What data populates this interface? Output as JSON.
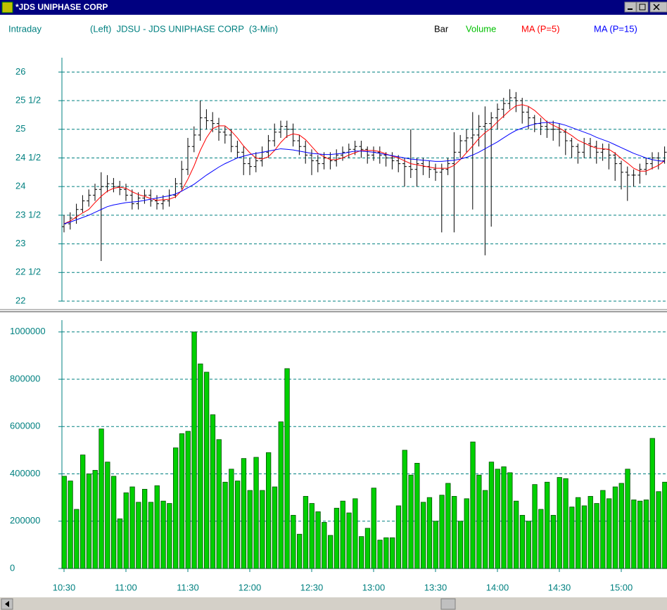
{
  "window": {
    "title": "*JDS UNIPHASE CORP"
  },
  "header": {
    "mode": "Intraday",
    "description": "(Left)  JDSU - JDS UNIPHASE CORP  (3-Min)"
  },
  "chart_data": [
    {
      "type": "ohlc",
      "ylim": [
        22,
        26.25
      ],
      "grid": true,
      "yticks": [
        22,
        {
          "value": 22.5,
          "label": "22 1/2"
        },
        23,
        {
          "value": 23.5,
          "label": "23 1/2"
        },
        24,
        {
          "value": 24.5,
          "label": "24 1/2"
        },
        25,
        {
          "value": 25.5,
          "label": "25 1/2"
        },
        26
      ],
      "series": [
        {
          "name": "Bar",
          "color": "#000000",
          "open": [
            23.3,
            23.35,
            23.45,
            23.6,
            23.75,
            23.85,
            23.95,
            24.0,
            24.05,
            24.0,
            23.95,
            23.85,
            23.7,
            23.8,
            23.85,
            23.75,
            23.7,
            23.75,
            23.85,
            24.05,
            24.3,
            24.7,
            24.9,
            25.2,
            25.15,
            25.1,
            24.95,
            24.9,
            24.7,
            24.6,
            24.4,
            24.35,
            24.45,
            24.6,
            24.8,
            24.95,
            25.05,
            25.0,
            24.8,
            24.7,
            24.55,
            24.45,
            24.4,
            24.5,
            24.45,
            24.55,
            24.6,
            24.65,
            24.7,
            24.65,
            24.55,
            24.6,
            24.55,
            24.5,
            24.45,
            24.4,
            24.35,
            24.3,
            24.4,
            24.35,
            24.3,
            24.25,
            24.3,
            24.4,
            24.6,
            24.8,
            24.85,
            24.9,
            25.05,
            25.1,
            25.2,
            25.35,
            25.45,
            25.55,
            25.5,
            25.3,
            25.2,
            25.1,
            25.05,
            25.0,
            25.0,
            24.95,
            24.8,
            24.7,
            24.6,
            24.75,
            24.7,
            24.6,
            24.65,
            24.55,
            24.4,
            24.25,
            24.2,
            24.2,
            24.3,
            24.4,
            24.5,
            24.45
          ],
          "high": [
            23.5,
            23.55,
            23.7,
            23.85,
            23.95,
            24.05,
            24.25,
            24.2,
            24.15,
            24.1,
            24.05,
            23.95,
            23.9,
            23.95,
            23.95,
            23.85,
            23.85,
            23.95,
            24.15,
            24.45,
            24.85,
            25.05,
            25.5,
            25.35,
            25.3,
            25.2,
            25.05,
            25.0,
            24.8,
            24.7,
            24.5,
            24.6,
            24.7,
            24.9,
            25.1,
            25.15,
            25.15,
            25.1,
            24.9,
            24.8,
            24.65,
            24.55,
            24.6,
            24.6,
            24.65,
            24.7,
            24.75,
            24.8,
            24.8,
            24.7,
            24.7,
            24.7,
            24.6,
            24.6,
            24.55,
            24.5,
            25.0,
            24.5,
            24.5,
            24.45,
            24.4,
            24.4,
            24.5,
            24.95,
            24.9,
            25.0,
            25.3,
            25.25,
            25.4,
            25.3,
            25.45,
            25.55,
            25.7,
            25.65,
            25.55,
            25.4,
            25.25,
            25.2,
            25.15,
            25.15,
            25.1,
            25.0,
            24.85,
            24.75,
            24.85,
            24.85,
            24.8,
            24.75,
            24.75,
            24.6,
            24.45,
            24.35,
            24.3,
            24.4,
            24.5,
            24.6,
            24.6,
            24.7
          ],
          "low": [
            23.2,
            23.25,
            23.35,
            23.55,
            23.65,
            23.75,
            22.7,
            23.9,
            23.9,
            23.85,
            23.75,
            23.6,
            23.6,
            23.7,
            23.65,
            23.6,
            23.6,
            23.65,
            23.8,
            23.95,
            24.2,
            24.6,
            24.8,
            25.0,
            24.95,
            24.8,
            24.75,
            24.6,
            24.5,
            24.2,
            24.2,
            24.25,
            24.35,
            24.5,
            24.7,
            24.85,
            24.85,
            24.7,
            24.55,
            24.4,
            24.2,
            24.25,
            24.3,
            24.3,
            24.35,
            24.45,
            24.5,
            24.55,
            24.5,
            24.4,
            24.45,
            24.4,
            24.35,
            24.3,
            24.25,
            24.0,
            24.15,
            24.0,
            24.2,
            24.15,
            24.1,
            23.2,
            24.2,
            23.2,
            24.5,
            24.6,
            23.6,
            24.7,
            22.8,
            23.3,
            25.0,
            25.2,
            25.35,
            25.3,
            25.1,
            25.0,
            24.95,
            24.9,
            24.85,
            24.8,
            24.7,
            24.55,
            24.5,
            24.4,
            24.5,
            24.5,
            24.4,
            24.45,
            24.3,
            24.1,
            23.95,
            23.75,
            24.0,
            24.05,
            24.2,
            24.3,
            24.3,
            24.4
          ],
          "close": [
            23.35,
            23.45,
            23.6,
            23.75,
            23.85,
            23.95,
            24.0,
            24.05,
            24.0,
            23.95,
            23.85,
            23.7,
            23.8,
            23.85,
            23.75,
            23.7,
            23.75,
            23.85,
            24.05,
            24.3,
            24.7,
            24.9,
            25.2,
            25.15,
            25.1,
            24.95,
            24.9,
            24.7,
            24.6,
            24.4,
            24.35,
            24.45,
            24.6,
            24.8,
            24.95,
            25.05,
            25.0,
            24.8,
            24.7,
            24.55,
            24.45,
            24.4,
            24.5,
            24.45,
            24.55,
            24.6,
            24.65,
            24.7,
            24.65,
            24.55,
            24.6,
            24.55,
            24.5,
            24.45,
            24.4,
            24.35,
            24.3,
            24.4,
            24.35,
            24.3,
            24.25,
            24.3,
            24.4,
            24.6,
            24.8,
            24.85,
            24.9,
            25.05,
            25.1,
            25.2,
            25.35,
            25.45,
            25.55,
            25.5,
            25.3,
            25.2,
            25.1,
            25.05,
            25.0,
            25.0,
            24.95,
            24.8,
            24.7,
            24.6,
            24.75,
            24.7,
            24.6,
            24.65,
            24.55,
            24.4,
            24.25,
            24.2,
            24.2,
            24.3,
            24.4,
            24.5,
            24.45,
            24.6
          ]
        },
        {
          "name": "MA (P=5)",
          "color": "#ff0000",
          "values": [
            23.35,
            23.4,
            23.47,
            23.54,
            23.6,
            23.72,
            23.83,
            23.92,
            23.97,
            23.99,
            23.97,
            23.91,
            23.86,
            23.83,
            23.79,
            23.76,
            23.77,
            23.78,
            23.82,
            23.93,
            24.13,
            24.36,
            24.63,
            24.85,
            25.01,
            25.06,
            25.06,
            24.97,
            24.85,
            24.71,
            24.59,
            24.5,
            24.48,
            24.52,
            24.63,
            24.77,
            24.88,
            24.92,
            24.9,
            24.82,
            24.7,
            24.58,
            24.52,
            24.47,
            24.47,
            24.5,
            24.55,
            24.59,
            24.63,
            24.63,
            24.63,
            24.61,
            24.57,
            24.53,
            24.5,
            24.45,
            24.4,
            24.38,
            24.36,
            24.34,
            24.32,
            24.32,
            24.32,
            24.37,
            24.47,
            24.59,
            24.71,
            24.84,
            24.94,
            25.02,
            25.13,
            25.23,
            25.33,
            25.41,
            25.43,
            25.4,
            25.33,
            25.23,
            25.13,
            25.07,
            25.02,
            24.96,
            24.89,
            24.81,
            24.76,
            24.71,
            24.67,
            24.66,
            24.65,
            24.58,
            24.49,
            24.41,
            24.32,
            24.27,
            24.27,
            24.32,
            24.37,
            24.45
          ]
        },
        {
          "name": "MA (P=15)",
          "color": "#0000ff",
          "values": [
            23.35,
            23.38,
            23.42,
            23.46,
            23.5,
            23.55,
            23.6,
            23.65,
            23.68,
            23.7,
            23.72,
            23.73,
            23.74,
            23.76,
            23.78,
            23.8,
            23.82,
            23.84,
            23.87,
            23.92,
            23.98,
            24.04,
            24.12,
            24.2,
            24.27,
            24.34,
            24.4,
            24.45,
            24.5,
            24.53,
            24.56,
            24.58,
            24.6,
            24.62,
            24.64,
            24.66,
            24.65,
            24.64,
            24.62,
            24.6,
            24.58,
            24.57,
            24.56,
            24.56,
            24.57,
            24.58,
            24.6,
            24.62,
            24.62,
            24.61,
            24.6,
            24.58,
            24.56,
            24.54,
            24.52,
            24.5,
            24.48,
            24.47,
            24.46,
            24.45,
            24.44,
            24.44,
            24.45,
            24.46,
            24.48,
            24.51,
            24.55,
            24.6,
            24.66,
            24.72,
            24.78,
            24.85,
            24.92,
            24.98,
            25.02,
            25.06,
            25.09,
            25.11,
            25.12,
            25.12,
            25.1,
            25.07,
            25.03,
            24.99,
            24.95,
            24.91,
            24.86,
            24.82,
            24.78,
            24.73,
            24.68,
            24.63,
            24.58,
            24.54,
            24.5,
            24.47,
            24.45,
            24.44
          ]
        }
      ]
    },
    {
      "type": "bar",
      "ylim": [
        0,
        1050000
      ],
      "grid": true,
      "yticks": [
        0,
        200000,
        400000,
        600000,
        800000,
        1000000
      ],
      "categories": [
        "10:30",
        null,
        null,
        null,
        null,
        null,
        null,
        null,
        null,
        null,
        "11:00",
        null,
        null,
        null,
        null,
        null,
        null,
        null,
        null,
        null,
        "11:30",
        null,
        null,
        null,
        null,
        null,
        null,
        null,
        null,
        null,
        "12:00",
        null,
        null,
        null,
        null,
        null,
        null,
        null,
        null,
        null,
        "12:30",
        null,
        null,
        null,
        null,
        null,
        null,
        null,
        null,
        null,
        "13:00",
        null,
        null,
        null,
        null,
        null,
        null,
        null,
        null,
        null,
        "13:30",
        null,
        null,
        null,
        null,
        null,
        null,
        null,
        null,
        null,
        "14:00",
        null,
        null,
        null,
        null,
        null,
        null,
        null,
        null,
        null,
        "14:30",
        null,
        null,
        null,
        null,
        null,
        null,
        null,
        null,
        null,
        "15:00",
        null,
        null,
        null,
        null,
        null,
        null,
        null
      ],
      "series": [
        {
          "name": "Volume",
          "color": "#00d000",
          "values": [
            390000,
            370000,
            250000,
            480000,
            400000,
            415000,
            590000,
            450000,
            390000,
            210000,
            320000,
            345000,
            280000,
            335000,
            280000,
            350000,
            285000,
            275000,
            510000,
            570000,
            580000,
            1000000,
            865000,
            830000,
            650000,
            545000,
            365000,
            420000,
            370000,
            465000,
            330000,
            470000,
            330000,
            490000,
            345000,
            620000,
            845000,
            225000,
            145000,
            305000,
            275000,
            240000,
            195000,
            140000,
            255000,
            285000,
            235000,
            295000,
            135000,
            170000,
            340000,
            120000,
            130000,
            130000,
            265000,
            500000,
            395000,
            445000,
            280000,
            300000,
            200000,
            310000,
            360000,
            305000,
            200000,
            295000,
            535000,
            395000,
            330000,
            450000,
            420000,
            430000,
            405000,
            285000,
            225000,
            200000,
            355000,
            250000,
            365000,
            225000,
            385000,
            380000,
            260000,
            300000,
            265000,
            305000,
            275000,
            330000,
            295000,
            345000,
            360000,
            420000,
            290000,
            285000,
            290000,
            550000,
            325000,
            365000
          ]
        }
      ]
    }
  ]
}
